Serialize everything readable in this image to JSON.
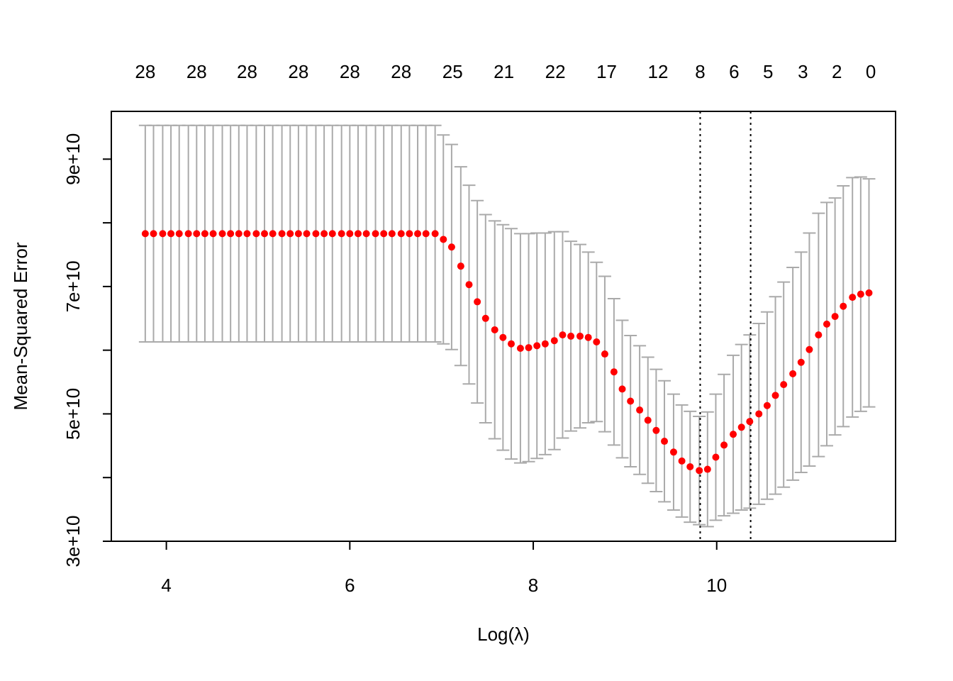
{
  "chart_data": {
    "type": "scatter",
    "subtype": "cv-error-plot-with-error-bars",
    "xlabel": "Log(λ)",
    "ylabel": "Mean-Squared Error",
    "xlim": [
      3.4,
      11.95
    ],
    "ylim": [
      30000000000,
      97500000000
    ],
    "x_ticks": [
      4,
      6,
      8,
      10
    ],
    "x_tick_labels": [
      "4",
      "6",
      "8",
      "10"
    ],
    "y_ticks": [
      30000000000,
      40000000000,
      50000000000,
      60000000000,
      70000000000,
      80000000000,
      90000000000
    ],
    "y_tick_labels": [
      "3e+10",
      "",
      "5e+10",
      "",
      "7e+10",
      "",
      "9e+10"
    ],
    "top_axis": {
      "positions": [
        3.77,
        4.33,
        4.88,
        5.44,
        6.0,
        6.56,
        7.12,
        7.68,
        8.24,
        8.8,
        9.36,
        9.82,
        10.19,
        10.56,
        10.94,
        11.31,
        11.68
      ],
      "labels": [
        "28",
        "28",
        "28",
        "28",
        "28",
        "28",
        "25",
        "21",
        "22",
        "17",
        "12",
        "8",
        "6",
        "5",
        "3",
        "2",
        "0"
      ]
    },
    "vlines": [
      9.82,
      10.37
    ],
    "colors": {
      "points": "#ff0000",
      "error_bars": "#aaaaaa",
      "vlines": "#000000"
    },
    "grid": false,
    "series": [
      {
        "x": [
          3.77,
          3.86,
          3.96,
          4.05,
          4.14,
          4.24,
          4.33,
          4.42,
          4.51,
          4.61,
          4.7,
          4.79,
          4.88,
          4.98,
          5.07,
          5.16,
          5.26,
          5.35,
          5.44,
          5.53,
          5.63,
          5.72,
          5.81,
          5.91,
          6.0,
          6.09,
          6.18,
          6.28,
          6.37,
          6.46,
          6.56,
          6.65,
          6.74,
          6.83,
          6.93,
          7.02,
          7.11,
          7.21,
          7.3,
          7.39,
          7.48,
          7.58,
          7.67,
          7.76,
          7.86,
          7.95,
          8.04,
          8.13,
          8.23,
          8.32,
          8.41,
          8.51,
          8.6,
          8.69,
          8.78,
          8.88,
          8.97,
          9.06,
          9.16,
          9.25,
          9.34,
          9.43,
          9.53,
          9.62,
          9.71,
          9.81,
          9.9,
          9.99,
          10.08,
          10.18,
          10.27,
          10.36,
          10.46,
          10.55,
          10.64,
          10.73,
          10.83,
          10.92,
          11.01,
          11.11,
          11.2,
          11.29,
          11.38,
          11.48,
          11.57,
          11.66
        ],
        "y": [
          78.3,
          78.3,
          78.3,
          78.3,
          78.3,
          78.3,
          78.3,
          78.3,
          78.3,
          78.3,
          78.3,
          78.3,
          78.3,
          78.3,
          78.3,
          78.3,
          78.3,
          78.3,
          78.3,
          78.3,
          78.3,
          78.3,
          78.3,
          78.3,
          78.3,
          78.3,
          78.3,
          78.3,
          78.3,
          78.3,
          78.3,
          78.3,
          78.3,
          78.3,
          78.3,
          77.4,
          76.2,
          73.2,
          70.3,
          67.6,
          65.0,
          63.2,
          62.0,
          61.0,
          60.3,
          60.4,
          60.7,
          61.0,
          61.5,
          62.4,
          62.2,
          62.2,
          62.0,
          61.3,
          59.4,
          56.6,
          53.9,
          52.0,
          50.6,
          49.0,
          47.4,
          45.7,
          44.0,
          42.6,
          41.7,
          41.1,
          41.3,
          43.2,
          45.1,
          46.8,
          47.9,
          48.8,
          50.0,
          51.3,
          52.9,
          54.6,
          56.3,
          58.1,
          60.1,
          62.4,
          64.1,
          65.3,
          66.9,
          68.3,
          68.8,
          69.0
        ],
        "lower": [
          61.3,
          61.3,
          61.3,
          61.3,
          61.3,
          61.3,
          61.3,
          61.3,
          61.3,
          61.3,
          61.3,
          61.3,
          61.3,
          61.3,
          61.3,
          61.3,
          61.3,
          61.3,
          61.3,
          61.3,
          61.3,
          61.3,
          61.3,
          61.3,
          61.3,
          61.3,
          61.3,
          61.3,
          61.3,
          61.3,
          61.3,
          61.3,
          61.3,
          61.3,
          61.3,
          61.0,
          60.1,
          57.6,
          54.7,
          51.7,
          48.6,
          46.1,
          44.3,
          42.9,
          42.3,
          42.5,
          43.0,
          43.6,
          44.4,
          46.2,
          47.3,
          47.8,
          48.6,
          48.8,
          47.2,
          45.1,
          43.1,
          41.7,
          40.5,
          39.1,
          37.8,
          36.2,
          34.9,
          33.8,
          33.0,
          32.6,
          32.3,
          33.3,
          34.0,
          34.4,
          34.9,
          35.2,
          35.8,
          36.6,
          37.4,
          38.5,
          39.6,
          40.8,
          41.8,
          43.3,
          45.0,
          46.7,
          48.0,
          49.5,
          50.4,
          51.1
        ],
        "upper": [
          95.3,
          95.3,
          95.3,
          95.3,
          95.3,
          95.3,
          95.3,
          95.3,
          95.3,
          95.3,
          95.3,
          95.3,
          95.3,
          95.3,
          95.3,
          95.3,
          95.3,
          95.3,
          95.3,
          95.3,
          95.3,
          95.3,
          95.3,
          95.3,
          95.3,
          95.3,
          95.3,
          95.3,
          95.3,
          95.3,
          95.3,
          95.3,
          95.3,
          95.3,
          95.3,
          93.8,
          92.3,
          88.8,
          85.9,
          83.5,
          81.3,
          80.3,
          79.7,
          79.1,
          78.3,
          78.3,
          78.4,
          78.4,
          78.6,
          78.6,
          77.1,
          76.6,
          75.4,
          73.8,
          71.6,
          68.1,
          64.7,
          62.3,
          60.7,
          58.9,
          57.0,
          55.2,
          53.1,
          51.4,
          50.4,
          49.6,
          50.3,
          53.1,
          56.2,
          59.2,
          60.9,
          62.4,
          64.2,
          66.0,
          68.4,
          70.7,
          73.0,
          75.4,
          78.4,
          81.5,
          83.2,
          83.9,
          85.8,
          87.1,
          87.2,
          86.9
        ]
      }
    ],
    "y_units_scale": 1000000000
  }
}
